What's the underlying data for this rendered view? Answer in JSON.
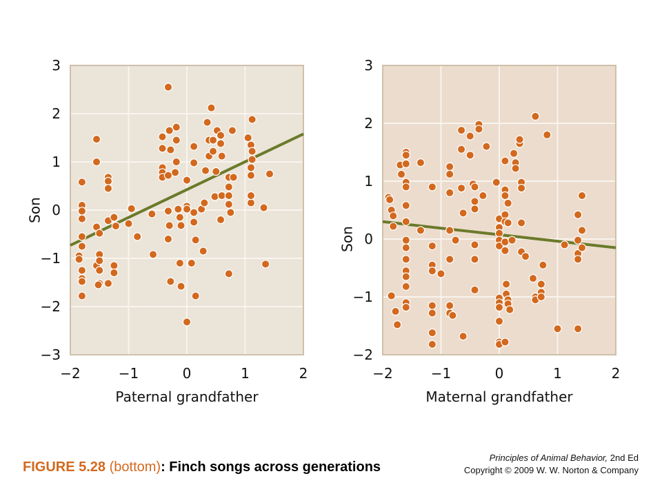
{
  "caption": {
    "label": "FIGURE 5.28",
    "sublabel": " (bottom)",
    "separator": ": ",
    "title": "Finch songs across generations"
  },
  "book": {
    "title": "Principles of Animal Behavior,",
    "edition": " 2nd Ed",
    "copyright": "Copyright © 2009 W. W. Norton & Company"
  },
  "colors": {
    "point": "#d2691e",
    "regression_line": "#6b7a2a",
    "panel1_bg": "#ebe4d9",
    "panel2_bg": "#ecdccd",
    "grid": "#f8f4ee",
    "border": "#cfc0ab"
  },
  "chart_data": [
    {
      "type": "scatter",
      "title": "",
      "xlabel": "Paternal grandfather",
      "ylabel": "Son",
      "xlim": [
        -2,
        2
      ],
      "ylim": [
        -3,
        3
      ],
      "xticks": [
        -2,
        -1,
        0,
        1,
        2
      ],
      "yticks": [
        -3,
        -2,
        -1,
        0,
        1,
        2,
        3
      ],
      "xtick_labels": [
        "−2",
        "−1",
        "0",
        "1",
        "2"
      ],
      "ytick_labels": [
        "−3",
        "−2",
        "−1",
        "0",
        "1",
        "2",
        "3"
      ],
      "grid": true,
      "trendline": [
        [
          -2,
          -0.73
        ],
        [
          2,
          1.58
        ]
      ],
      "points": [
        [
          -1.8,
          0.58
        ],
        [
          -1.8,
          0.1
        ],
        [
          -1.8,
          -0.02
        ],
        [
          -1.8,
          -0.18
        ],
        [
          -1.85,
          -0.95
        ],
        [
          -1.8,
          -0.55
        ],
        [
          -1.8,
          -0.75
        ],
        [
          -1.85,
          -1.02
        ],
        [
          -1.8,
          -1.25
        ],
        [
          -1.8,
          -1.42
        ],
        [
          -1.8,
          -1.48
        ],
        [
          -1.8,
          -1.78
        ],
        [
          -1.55,
          1.47
        ],
        [
          -1.55,
          1.0
        ],
        [
          -1.55,
          -0.35
        ],
        [
          -1.55,
          -1.15
        ],
        [
          -1.5,
          -0.92
        ],
        [
          -1.5,
          -1.05
        ],
        [
          -1.5,
          -1.25
        ],
        [
          -1.5,
          -1.52
        ],
        [
          -1.52,
          -1.55
        ],
        [
          -1.5,
          -0.48
        ],
        [
          -1.35,
          0.68
        ],
        [
          -1.35,
          0.6
        ],
        [
          -1.35,
          0.45
        ],
        [
          -1.35,
          -0.22
        ],
        [
          -1.35,
          -1.52
        ],
        [
          -1.25,
          -1.15
        ],
        [
          -1.25,
          -1.3
        ],
        [
          -1.25,
          -0.15
        ],
        [
          -1.22,
          -0.33
        ],
        [
          -1.0,
          -0.28
        ],
        [
          -0.95,
          0.03
        ],
        [
          -0.85,
          -0.55
        ],
        [
          -0.6,
          -0.08
        ],
        [
          -0.58,
          -0.92
        ],
        [
          -0.42,
          1.28
        ],
        [
          -0.42,
          1.52
        ],
        [
          -0.42,
          0.88
        ],
        [
          -0.42,
          0.78
        ],
        [
          -0.42,
          0.68
        ],
        [
          -0.32,
          2.55
        ],
        [
          -0.3,
          1.65
        ],
        [
          -0.28,
          1.25
        ],
        [
          -0.32,
          0.72
        ],
        [
          -0.32,
          -0.02
        ],
        [
          -0.32,
          -0.6
        ],
        [
          -0.3,
          -0.32
        ],
        [
          -0.28,
          -1.48
        ],
        [
          -0.18,
          1.72
        ],
        [
          -0.18,
          1.45
        ],
        [
          -0.18,
          1.0
        ],
        [
          -0.2,
          0.78
        ],
        [
          -0.15,
          0.02
        ],
        [
          -0.12,
          -0.15
        ],
        [
          -0.1,
          -0.32
        ],
        [
          -0.12,
          -1.1
        ],
        [
          -0.1,
          -1.58
        ],
        [
          0.0,
          0.62
        ],
        [
          0.0,
          0.08
        ],
        [
          0.0,
          0.02
        ],
        [
          0.0,
          -2.32
        ],
        [
          0.08,
          -1.1
        ],
        [
          0.12,
          1.32
        ],
        [
          0.12,
          0.98
        ],
        [
          0.12,
          -0.05
        ],
        [
          0.12,
          -0.25
        ],
        [
          0.15,
          -0.62
        ],
        [
          0.15,
          -1.78
        ],
        [
          0.25,
          0.02
        ],
        [
          0.28,
          -0.85
        ],
        [
          0.3,
          0.15
        ],
        [
          0.32,
          0.82
        ],
        [
          0.35,
          1.82
        ],
        [
          0.38,
          1.45
        ],
        [
          0.38,
          1.12
        ],
        [
          0.42,
          2.12
        ],
        [
          0.45,
          1.45
        ],
        [
          0.45,
          1.22
        ],
        [
          0.48,
          0.28
        ],
        [
          0.5,
          0.8
        ],
        [
          0.52,
          1.65
        ],
        [
          0.58,
          1.55
        ],
        [
          0.58,
          1.38
        ],
        [
          0.6,
          1.12
        ],
        [
          0.6,
          0.3
        ],
        [
          0.58,
          -0.2
        ],
        [
          0.72,
          0.68
        ],
        [
          0.72,
          0.48
        ],
        [
          0.72,
          0.3
        ],
        [
          0.72,
          0.12
        ],
        [
          0.75,
          -0.05
        ],
        [
          0.72,
          -1.32
        ],
        [
          0.78,
          1.65
        ],
        [
          0.8,
          0.68
        ],
        [
          1.05,
          1.5
        ],
        [
          1.12,
          1.88
        ],
        [
          1.1,
          1.35
        ],
        [
          1.12,
          1.22
        ],
        [
          1.12,
          1.05
        ],
        [
          1.1,
          0.88
        ],
        [
          1.1,
          0.72
        ],
        [
          1.1,
          0.15
        ],
        [
          1.1,
          0.3
        ],
        [
          1.32,
          0.05
        ],
        [
          1.35,
          -1.12
        ],
        [
          1.42,
          0.75
        ]
      ]
    },
    {
      "type": "scatter",
      "title": "",
      "xlabel": "Maternal grandfather",
      "ylabel": "Son",
      "xlim": [
        -2,
        2
      ],
      "ylim": [
        -2,
        3
      ],
      "xticks": [
        -2,
        -1,
        0,
        1,
        2
      ],
      "yticks": [
        -2,
        -1,
        0,
        1,
        2,
        3
      ],
      "xtick_labels": [
        "−2",
        "−1",
        "0",
        "1",
        "2"
      ],
      "ytick_labels": [
        "−2",
        "−1",
        "0",
        "1",
        "2",
        "3"
      ],
      "grid": true,
      "trendline": [
        [
          -2,
          0.3
        ],
        [
          2,
          -0.15
        ]
      ],
      "points": [
        [
          -1.9,
          0.72
        ],
        [
          -1.88,
          0.68
        ],
        [
          -1.85,
          0.5
        ],
        [
          -1.82,
          0.4
        ],
        [
          -1.82,
          0.22
        ],
        [
          -1.85,
          -0.98
        ],
        [
          -1.78,
          -1.25
        ],
        [
          -1.75,
          -1.48
        ],
        [
          -1.7,
          1.28
        ],
        [
          -1.68,
          1.12
        ],
        [
          -1.6,
          1.5
        ],
        [
          -1.6,
          1.45
        ],
        [
          -1.6,
          1.3
        ],
        [
          -1.6,
          0.98
        ],
        [
          -1.6,
          0.9
        ],
        [
          -1.6,
          0.58
        ],
        [
          -1.6,
          0.3
        ],
        [
          -1.6,
          -0.02
        ],
        [
          -1.6,
          -0.15
        ],
        [
          -1.6,
          -0.35
        ],
        [
          -1.6,
          -0.55
        ],
        [
          -1.6,
          -0.65
        ],
        [
          -1.6,
          -0.82
        ],
        [
          -1.6,
          -1.1
        ],
        [
          -1.6,
          -1.18
        ],
        [
          -1.35,
          1.32
        ],
        [
          -1.35,
          0.15
        ],
        [
          -1.15,
          0.9
        ],
        [
          -1.15,
          -0.12
        ],
        [
          -1.15,
          -0.45
        ],
        [
          -1.15,
          -0.55
        ],
        [
          -1.15,
          -1.15
        ],
        [
          -1.15,
          -1.28
        ],
        [
          -1.15,
          -1.62
        ],
        [
          -1.15,
          -1.82
        ],
        [
          -1.0,
          -0.6
        ],
        [
          -0.85,
          1.25
        ],
        [
          -0.85,
          1.12
        ],
        [
          -0.85,
          0.8
        ],
        [
          -0.85,
          0.15
        ],
        [
          -0.85,
          -0.35
        ],
        [
          -0.85,
          -1.15
        ],
        [
          -0.85,
          -1.28
        ],
        [
          -0.8,
          -1.32
        ],
        [
          -0.75,
          -0.02
        ],
        [
          -0.65,
          1.88
        ],
        [
          -0.65,
          1.55
        ],
        [
          -0.65,
          0.88
        ],
        [
          -0.62,
          0.45
        ],
        [
          -0.62,
          -1.68
        ],
        [
          -0.5,
          1.45
        ],
        [
          -0.5,
          1.78
        ],
        [
          -0.45,
          0.95
        ],
        [
          -0.42,
          0.9
        ],
        [
          -0.42,
          0.65
        ],
        [
          -0.42,
          0.52
        ],
        [
          -0.42,
          -0.1
        ],
        [
          -0.42,
          -0.35
        ],
        [
          -0.42,
          -0.88
        ],
        [
          -0.35,
          1.98
        ],
        [
          -0.35,
          1.9
        ],
        [
          -0.28,
          0.75
        ],
        [
          -0.22,
          1.6
        ],
        [
          -0.05,
          0.98
        ],
        [
          0.0,
          0.35
        ],
        [
          0.0,
          0.2
        ],
        [
          0.0,
          0.1
        ],
        [
          0.0,
          -0.02
        ],
        [
          0.0,
          -0.12
        ],
        [
          0.0,
          -1.02
        ],
        [
          0.0,
          -1.1
        ],
        [
          0.0,
          -1.18
        ],
        [
          0.0,
          -1.42
        ],
        [
          0.0,
          -1.78
        ],
        [
          0.0,
          -1.82
        ],
        [
          0.1,
          1.35
        ],
        [
          0.1,
          0.85
        ],
        [
          0.1,
          0.75
        ],
        [
          0.1,
          0.42
        ],
        [
          0.1,
          0.3
        ],
        [
          0.1,
          -0.05
        ],
        [
          0.1,
          -0.2
        ],
        [
          0.12,
          -0.78
        ],
        [
          0.12,
          -0.95
        ],
        [
          0.1,
          -1.78
        ],
        [
          0.15,
          0.62
        ],
        [
          0.15,
          0.28
        ],
        [
          0.15,
          -1.05
        ],
        [
          0.15,
          -1.12
        ],
        [
          0.18,
          -1.22
        ],
        [
          0.22,
          -0.02
        ],
        [
          0.25,
          1.48
        ],
        [
          0.28,
          1.32
        ],
        [
          0.28,
          1.22
        ],
        [
          0.35,
          1.65
        ],
        [
          0.35,
          1.72
        ],
        [
          0.38,
          0.28
        ],
        [
          0.38,
          0.98
        ],
        [
          0.38,
          0.88
        ],
        [
          0.38,
          -0.22
        ],
        [
          0.45,
          -0.3
        ],
        [
          0.58,
          -0.68
        ],
        [
          0.62,
          2.12
        ],
        [
          0.62,
          -1.0
        ],
        [
          0.62,
          -1.05
        ],
        [
          0.72,
          -0.92
        ],
        [
          0.72,
          -1.0
        ],
        [
          0.72,
          -0.78
        ],
        [
          0.75,
          -0.45
        ],
        [
          0.82,
          1.8
        ],
        [
          1.0,
          -1.55
        ],
        [
          1.12,
          -0.1
        ],
        [
          1.35,
          0.42
        ],
        [
          1.35,
          -0.02
        ],
        [
          1.35,
          -0.25
        ],
        [
          1.35,
          -0.35
        ],
        [
          1.35,
          -1.55
        ],
        [
          1.42,
          0.75
        ],
        [
          1.42,
          0.15
        ],
        [
          1.42,
          -0.15
        ]
      ]
    }
  ]
}
